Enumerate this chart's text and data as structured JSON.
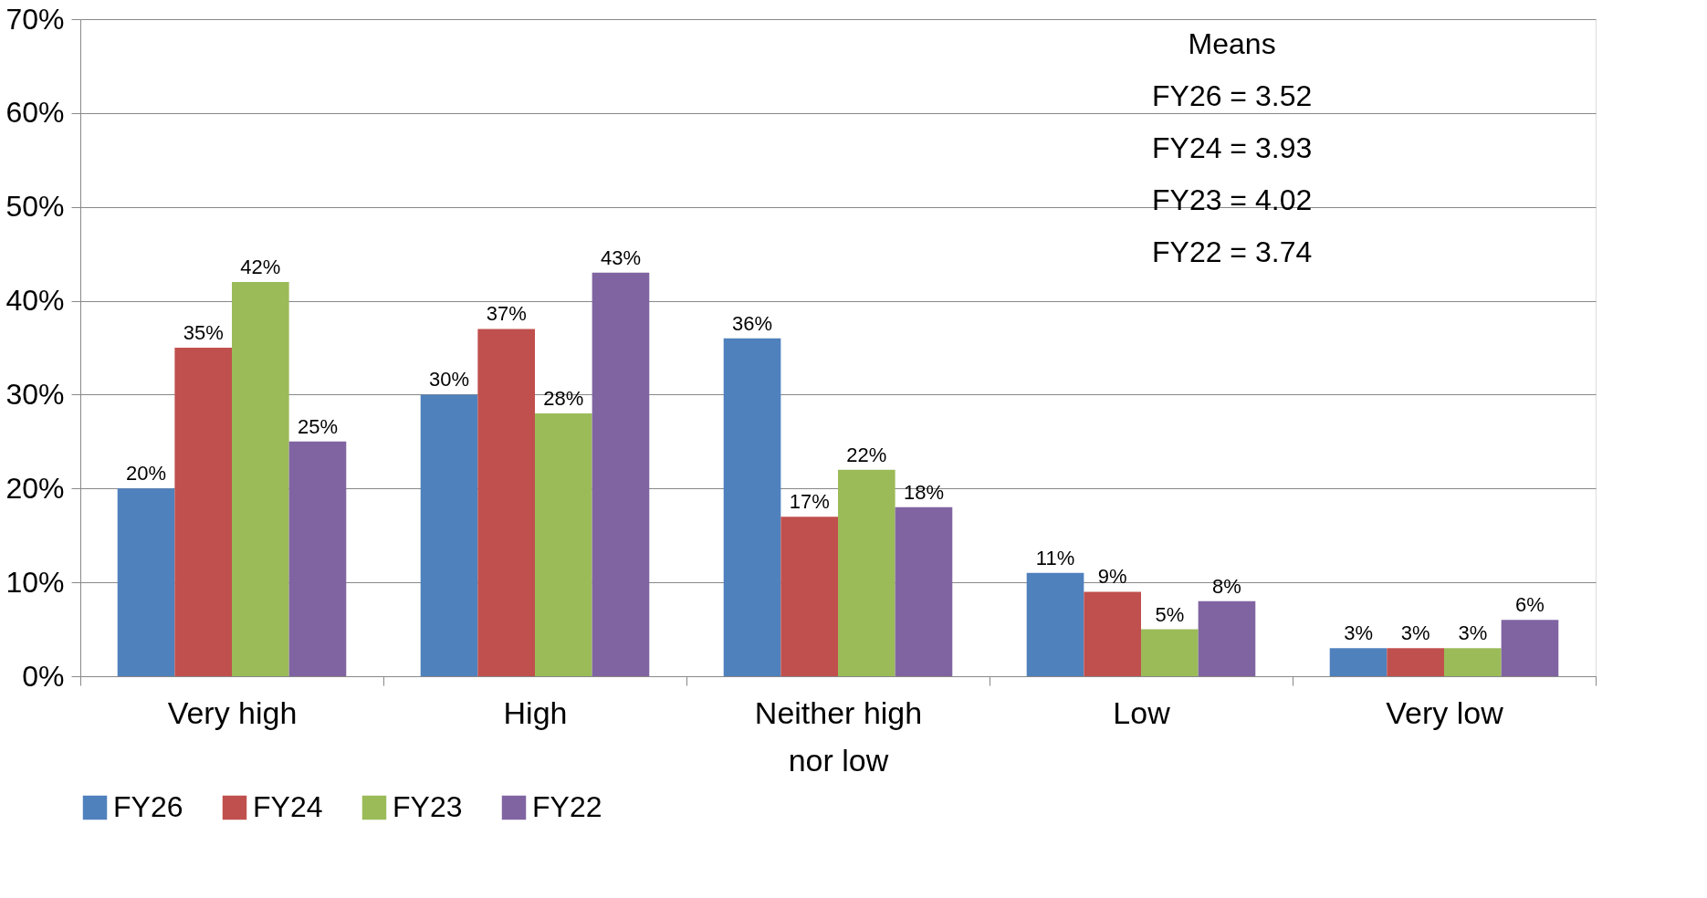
{
  "chart_data": {
    "type": "bar",
    "categories": [
      "Very high",
      "High",
      "Neither high nor low",
      "Low",
      "Very low"
    ],
    "series": [
      {
        "name": "FY26",
        "color": "#4f81bd",
        "values": [
          20,
          30,
          36,
          11,
          3
        ],
        "value_labels": [
          "20%",
          "30%",
          "36%",
          "11%",
          "3%"
        ]
      },
      {
        "name": "FY24",
        "color": "#c0504d",
        "values": [
          35,
          37,
          17,
          9,
          3
        ],
        "value_labels": [
          "35%",
          "37%",
          "17%",
          "9%",
          "3%"
        ]
      },
      {
        "name": "FY23",
        "color": "#9bbb59",
        "values": [
          42,
          28,
          22,
          5,
          3
        ],
        "value_labels": [
          "42%",
          "28%",
          "22%",
          "5%",
          "3%"
        ]
      },
      {
        "name": "FY22",
        "color": "#8064a2",
        "values": [
          25,
          43,
          18,
          8,
          6
        ],
        "value_labels": [
          "25%",
          "43%",
          "18%",
          "8%",
          "6%"
        ]
      }
    ],
    "ylim": [
      0,
      70
    ],
    "yticks": [
      {
        "value": 0,
        "label": "0%"
      },
      {
        "value": 10,
        "label": "10%"
      },
      {
        "value": 20,
        "label": "20%"
      },
      {
        "value": 30,
        "label": "30%"
      },
      {
        "value": 40,
        "label": "40%"
      },
      {
        "value": 50,
        "label": "50%"
      },
      {
        "value": 60,
        "label": "60%"
      },
      {
        "value": 70,
        "label": "70%"
      }
    ],
    "grid": "y",
    "legend": "bottom",
    "annotations": [
      "Means",
      "FY26 = 3.52",
      "FY24 = 3.93",
      "FY23 = 4.02",
      "FY22 = 3.74"
    ]
  }
}
